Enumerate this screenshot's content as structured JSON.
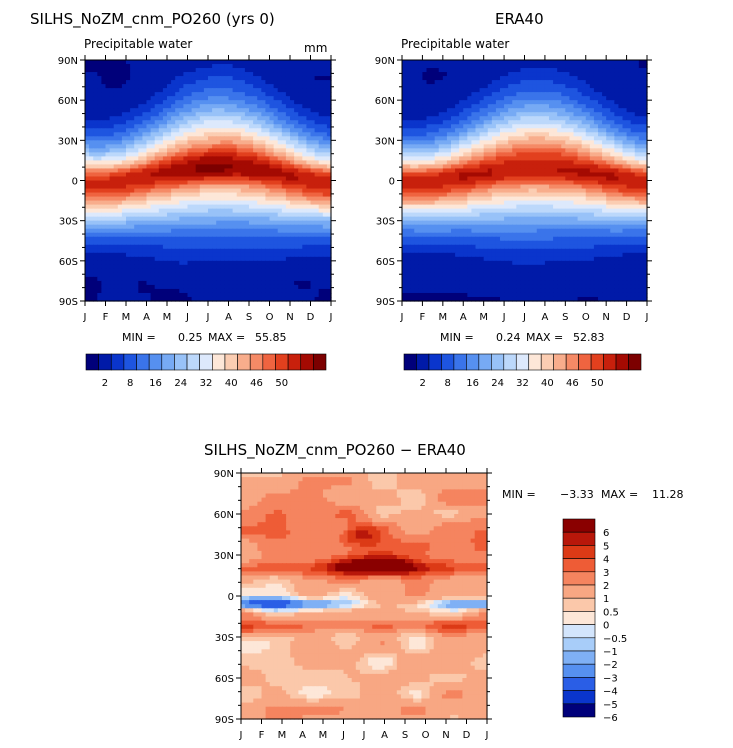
{
  "palette_full": [
    "#00007a",
    "#001aa8",
    "#0a35cc",
    "#1e55e0",
    "#3a74ea",
    "#5690f0",
    "#77aaf4",
    "#98c2f8",
    "#bcd8fb",
    "#dde9fc",
    "#fde7d8",
    "#fbcdb2",
    "#f8ad8c",
    "#f58a66",
    "#ef6440",
    "#e2401e",
    "#c8200c",
    "#a40a02",
    "#7c0000"
  ],
  "palette_diff": [
    "#00007a",
    "#0a35cc",
    "#2a5ee6",
    "#5690f0",
    "#7fb0f5",
    "#a8cdf9",
    "#d3e5fc",
    "#fde7d8",
    "#fbc8aa",
    "#f8a783",
    "#f5845f",
    "#ee5c36",
    "#dc3a16",
    "#b8170a",
    "#8a0000"
  ],
  "months": [
    "J",
    "F",
    "M",
    "A",
    "M",
    "J",
    "J",
    "A",
    "S",
    "O",
    "N",
    "D",
    "J"
  ],
  "lat_ticks": [
    "90N",
    "60N",
    "30N",
    "0",
    "30S",
    "60S",
    "90S"
  ],
  "panels": [
    {
      "title": "SILHS_NoZM_cnm_PO260 (yrs 0)",
      "variable": "Precipitable water",
      "units": "mm",
      "min_label": "MIN =",
      "min": "0.25",
      "max_label": "MAX =",
      "max": "55.85"
    },
    {
      "title": "ERA40",
      "variable": "Precipitable water",
      "units": "",
      "min_label": "MIN =",
      "min": "0.24",
      "max_label": "MAX =",
      "max": "52.83"
    }
  ],
  "colorbar_labels": [
    "2",
    "8",
    "16",
    "24",
    "32",
    "40",
    "46",
    "50"
  ],
  "diff_panel": {
    "title": "SILHS_NoZM_cnm_PO260 − ERA40",
    "min_label": "MIN =",
    "min": "−3.33",
    "max_label": "MAX =",
    "max": "11.28",
    "levels": [
      "6",
      "5",
      "4",
      "3",
      "2",
      "1",
      "0.5",
      "0",
      "−0.5",
      "−1",
      "−2",
      "−3",
      "−4",
      "−5",
      "−6"
    ]
  },
  "chart_data": [
    {
      "type": "heatmap",
      "title": "SILHS_NoZM_cnm_PO260 (yrs 0)",
      "subtitle": "Precipitable water",
      "units": "mm",
      "x": [
        "J",
        "F",
        "M",
        "A",
        "M",
        "J",
        "J",
        "A",
        "S",
        "O",
        "N",
        "D",
        "J"
      ],
      "y": [
        "90N",
        "60N",
        "30N",
        "0",
        "30S",
        "60S",
        "90S"
      ],
      "min": 0.25,
      "max": 55.85,
      "colorbar": [
        2,
        8,
        16,
        24,
        32,
        40,
        46,
        50
      ],
      "grid": false
    },
    {
      "type": "heatmap",
      "title": "ERA40",
      "subtitle": "Precipitable water",
      "x": [
        "J",
        "F",
        "M",
        "A",
        "M",
        "J",
        "J",
        "A",
        "S",
        "O",
        "N",
        "D",
        "J"
      ],
      "y": [
        "90N",
        "60N",
        "30N",
        "0",
        "30S",
        "60S",
        "90S"
      ],
      "min": 0.24,
      "max": 52.83,
      "colorbar": [
        2,
        8,
        16,
        24,
        32,
        40,
        46,
        50
      ],
      "grid": false
    },
    {
      "type": "heatmap",
      "title": "SILHS_NoZM_cnm_PO260 − ERA40",
      "x": [
        "J",
        "F",
        "M",
        "A",
        "M",
        "J",
        "J",
        "A",
        "S",
        "O",
        "N",
        "D",
        "J"
      ],
      "y": [
        "90N",
        "60N",
        "30N",
        "0",
        "30S",
        "60S",
        "90S"
      ],
      "min": -3.33,
      "max": 11.28,
      "colorbar": [
        6,
        5,
        4,
        3,
        2,
        1,
        0.5,
        0,
        -0.5,
        -1,
        -2,
        -3,
        -4,
        -5,
        -6
      ],
      "legend": "right",
      "grid": false
    }
  ]
}
